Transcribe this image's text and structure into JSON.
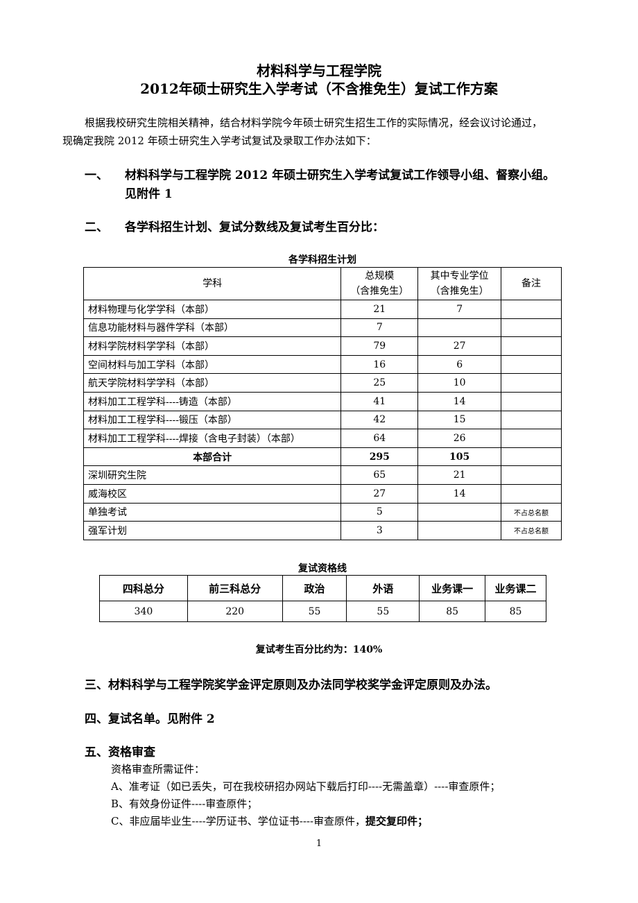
{
  "title": {
    "line1": "材料科学与工程学院",
    "line2": "2012年硕士研究生入学考试（不含推免生）复试工作方案"
  },
  "intro": {
    "line1": "根据我校研究生院相关精神，结合材料学院今年硕士研究生招生工作的实际情况，经会议讨论通过，",
    "line2": "现确定我院 2012 年硕士研究生入学考试复试及录取工作办法如下："
  },
  "section1": {
    "num": "一、",
    "line1": "材料科学与工程学院 2012 年硕士研究生入学考试复试工作领导小组、督察小组。",
    "line2": "见附件 1"
  },
  "section2": {
    "num": "二、",
    "text": "各学科招生计划、复试分数线及复试考生百分比："
  },
  "plan_table": {
    "caption": "各学科招生计划",
    "headers": [
      "学科",
      "总规模\n（含推免生）",
      "其中专业学位\n（含推免生）",
      "备注"
    ],
    "header_total": [
      "总规模",
      "（含推免生）"
    ],
    "header_pro": [
      "其中专业学位",
      "（含推免生）"
    ],
    "rows": [
      {
        "subject": "材料物理与化学学科（本部）",
        "total": "21",
        "pro": "7",
        "note": ""
      },
      {
        "subject": "信息功能材料与器件学科（本部）",
        "total": "7",
        "pro": "",
        "note": ""
      },
      {
        "subject": "材料学院材料学学科（本部）",
        "total": "79",
        "pro": "27",
        "note": ""
      },
      {
        "subject": "空间材料与加工学科（本部）",
        "total": "16",
        "pro": "6",
        "note": ""
      },
      {
        "subject": "航天学院材料学学科（本部）",
        "total": "25",
        "pro": "10",
        "note": ""
      },
      {
        "subject": "材料加工工程学科----铸造（本部）",
        "total": "41",
        "pro": "14",
        "note": ""
      },
      {
        "subject": "材料加工工程学科----锻压（本部）",
        "total": "42",
        "pro": "15",
        "note": ""
      },
      {
        "subject": "材料加工工程学科----焊接（含电子封装）（本部）",
        "total": "64",
        "pro": "26",
        "note": ""
      },
      {
        "subject": "本部合计",
        "total": "295",
        "pro": "105",
        "note": ""
      },
      {
        "subject": "深圳研究生院",
        "total": "65",
        "pro": "21",
        "note": ""
      },
      {
        "subject": "威海校区",
        "total": "27",
        "pro": "14",
        "note": ""
      },
      {
        "subject": "单独考试",
        "total": "5",
        "pro": "",
        "note": "不占总名额"
      },
      {
        "subject": "强军计划",
        "total": "3",
        "pro": "",
        "note": "不占总名额"
      }
    ]
  },
  "score_table": {
    "caption": "复试资格线",
    "headers": [
      "四科总分",
      "前三科总分",
      "政治",
      "外语",
      "业务课一",
      "业务课二"
    ],
    "values": [
      "340",
      "220",
      "55",
      "55",
      "85",
      "85"
    ]
  },
  "ratio": "复试考生百分比约为：140%",
  "section3": "三、材料科学与工程学院奖学金评定原则及办法同学校奖学金评定原则及办法。",
  "section4": "四、复试名单。见附件 2",
  "section5": {
    "heading": "五、资格审查",
    "intro": "资格审查所需证件：",
    "itemA": "A、准考证（如已丢失，可在我校研招办网站下载后打印----无需盖章）----审查原件；",
    "itemB": "B、有效身份证件----审查原件；",
    "itemC": "C、非应届毕业生----学历证书、学位证书----审查原件，",
    "itemC_bold": "提交复印件；"
  },
  "page_number": "1"
}
